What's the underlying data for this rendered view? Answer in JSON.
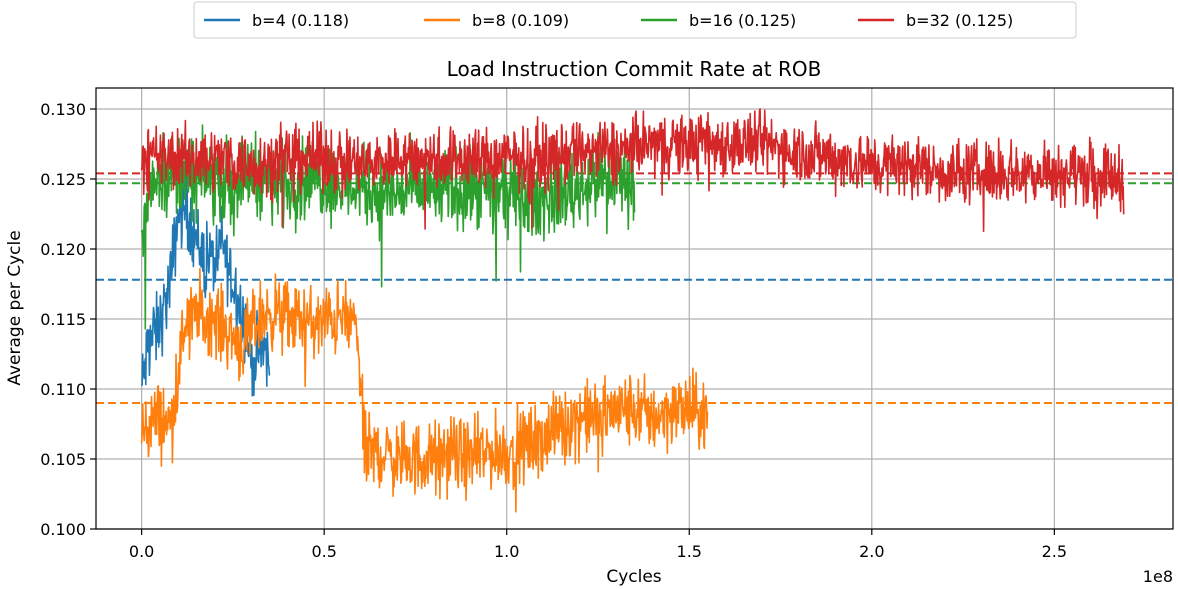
{
  "chart_data": {
    "type": "line",
    "title": "Load Instruction Commit Rate at ROB",
    "xlabel": "Cycles",
    "ylabel": "Average per Cycle",
    "x_offset_label": "1e8",
    "xlim": [
      -0.125,
      2.825
    ],
    "ylim": [
      0.1,
      0.1315
    ],
    "x_ticks": [
      0.0,
      0.5,
      1.0,
      1.5,
      2.0,
      2.5
    ],
    "x_tick_labels": [
      "0.0",
      "0.5",
      "1.0",
      "1.5",
      "2.0",
      "2.5"
    ],
    "y_ticks": [
      0.1,
      0.105,
      0.11,
      0.115,
      0.12,
      0.125,
      0.13
    ],
    "y_tick_labels": [
      "0.100",
      "0.105",
      "0.110",
      "0.115",
      "0.120",
      "0.125",
      "0.130"
    ],
    "grid": true,
    "legend_position": "top-center",
    "series": [
      {
        "name": "b=4  (0.118)",
        "color": "#1f77b4",
        "mean": 0.1178,
        "x": [
          0.0,
          0.02,
          0.04,
          0.06,
          0.08,
          0.1,
          0.12,
          0.14,
          0.16,
          0.18,
          0.2,
          0.22,
          0.24,
          0.26,
          0.28,
          0.3,
          0.32,
          0.34,
          0.35
        ],
        "y": [
          0.11,
          0.1135,
          0.114,
          0.1155,
          0.118,
          0.1225,
          0.123,
          0.1215,
          0.12,
          0.1195,
          0.119,
          0.1205,
          0.1185,
          0.117,
          0.115,
          0.112,
          0.1125,
          0.113,
          0.111
        ],
        "noise": 0.0035
      },
      {
        "name": "b=8  (0.109)",
        "color": "#ff7f0e",
        "mean": 0.109,
        "x": [
          0.0,
          0.04,
          0.08,
          0.1,
          0.12,
          0.16,
          0.2,
          0.24,
          0.28,
          0.32,
          0.36,
          0.4,
          0.44,
          0.48,
          0.52,
          0.56,
          0.59,
          0.61,
          0.65,
          0.7,
          0.75,
          0.8,
          0.85,
          0.9,
          0.95,
          1.0,
          1.05,
          1.1,
          1.15,
          1.2,
          1.25,
          1.3,
          1.35,
          1.4,
          1.45,
          1.5,
          1.55
        ],
        "y": [
          0.107,
          0.108,
          0.1075,
          0.111,
          0.115,
          0.1155,
          0.115,
          0.114,
          0.113,
          0.115,
          0.1155,
          0.115,
          0.115,
          0.1145,
          0.115,
          0.115,
          0.1145,
          0.1055,
          0.1055,
          0.105,
          0.105,
          0.105,
          0.1055,
          0.105,
          0.1055,
          0.1055,
          0.106,
          0.1065,
          0.1075,
          0.108,
          0.108,
          0.1085,
          0.1085,
          0.108,
          0.1085,
          0.1085,
          0.108
        ],
        "noise": 0.0035
      },
      {
        "name": "b=16  (0.125)",
        "color": "#2ca02c",
        "mean": 0.1247,
        "x": [
          0.0,
          0.02,
          0.05,
          0.1,
          0.15,
          0.2,
          0.25,
          0.3,
          0.35,
          0.4,
          0.45,
          0.5,
          0.55,
          0.6,
          0.65,
          0.7,
          0.75,
          0.8,
          0.85,
          0.9,
          0.95,
          1.0,
          1.05,
          1.1,
          1.15,
          1.2,
          1.25,
          1.3,
          1.35
        ],
        "y": [
          0.1195,
          0.1245,
          0.1255,
          0.1255,
          0.125,
          0.125,
          0.125,
          0.1255,
          0.125,
          0.1245,
          0.125,
          0.125,
          0.1245,
          0.1245,
          0.124,
          0.124,
          0.1245,
          0.124,
          0.1245,
          0.124,
          0.124,
          0.124,
          0.1235,
          0.1235,
          0.124,
          0.1245,
          0.125,
          0.125,
          0.125
        ],
        "noise": 0.0038
      },
      {
        "name": "b=32  (0.125)",
        "color": "#d62728",
        "mean": 0.1254,
        "x": [
          0.0,
          0.1,
          0.2,
          0.3,
          0.4,
          0.5,
          0.6,
          0.7,
          0.8,
          0.9,
          1.0,
          1.1,
          1.2,
          1.3,
          1.4,
          1.5,
          1.6,
          1.7,
          1.8,
          1.9,
          2.0,
          2.1,
          2.2,
          2.3,
          2.4,
          2.5,
          2.6,
          2.69
        ],
        "y": [
          0.1265,
          0.1265,
          0.1265,
          0.126,
          0.1265,
          0.1265,
          0.126,
          0.1265,
          0.1265,
          0.1265,
          0.1265,
          0.1265,
          0.127,
          0.127,
          0.1275,
          0.1275,
          0.1275,
          0.1275,
          0.127,
          0.1265,
          0.126,
          0.126,
          0.1255,
          0.1255,
          0.1255,
          0.1255,
          0.1255,
          0.125
        ],
        "noise": 0.003
      }
    ]
  }
}
